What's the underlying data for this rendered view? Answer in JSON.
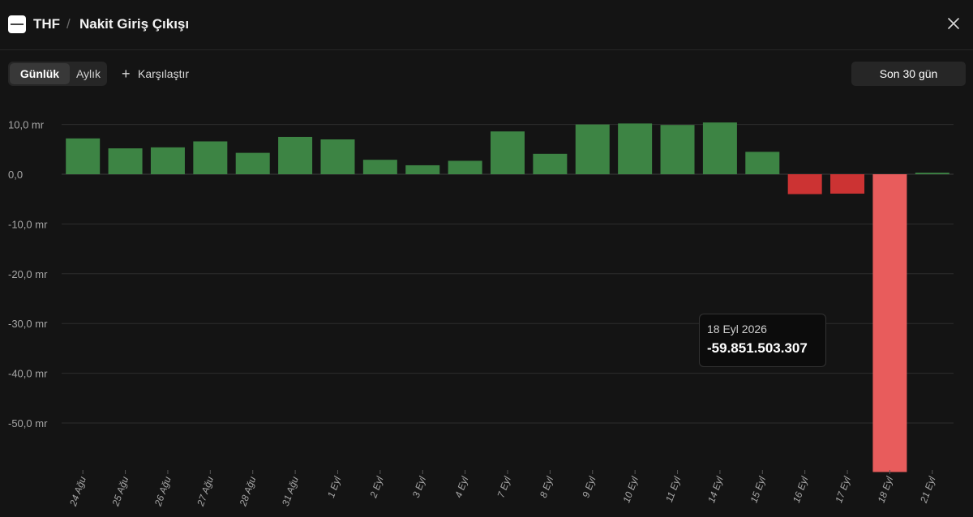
{
  "header": {
    "ticker": "THF",
    "separator": "/",
    "title": "Nakit Giriş Çıkışı"
  },
  "toolbar": {
    "period_tabs": [
      "Günlük",
      "Aylık"
    ],
    "active_tab": "Günlük",
    "compare_label": "Karşılaştır",
    "range_label": "Son 30 gün"
  },
  "colors": {
    "positive": "#3d8444",
    "negative": "#cc3333",
    "highlight": "#e85c5c",
    "background": "#141414"
  },
  "tooltip": {
    "date": "18 Eyl 2026",
    "value": "-59.851.503.307"
  },
  "chart_data": {
    "type": "bar",
    "categories": [
      "24 Ağu",
      "25 Ağu",
      "26 Ağu",
      "27 Ağu",
      "28 Ağu",
      "31 Ağu",
      "1 Eyl",
      "2 Eyl",
      "3 Eyl",
      "4 Eyl",
      "7 Eyl",
      "8 Eyl",
      "9 Eyl",
      "10 Eyl",
      "11 Eyl",
      "14 Eyl",
      "15 Eyl",
      "16 Eyl",
      "17 Eyl",
      "18 Eyl",
      "21 Eyl"
    ],
    "values": [
      7.2,
      5.2,
      5.4,
      6.6,
      4.3,
      7.5,
      7.0,
      2.9,
      1.8,
      2.7,
      8.6,
      4.1,
      10.0,
      10.2,
      9.9,
      10.4,
      4.5,
      -4.0,
      -3.9,
      -59.85,
      0.3
    ],
    "highlighted": "18 Eyl",
    "y_ticks": [
      "10,0 mr",
      "0,0",
      "-10,0 mr",
      "-20,0 mr",
      "-30,0 mr",
      "-40,0 mr",
      "-50,0 mr"
    ],
    "y_tick_values": [
      10,
      0,
      -10,
      -20,
      -30,
      -40,
      -50
    ],
    "ylim": [
      -60,
      10
    ],
    "unit": "mr",
    "grid": true
  }
}
